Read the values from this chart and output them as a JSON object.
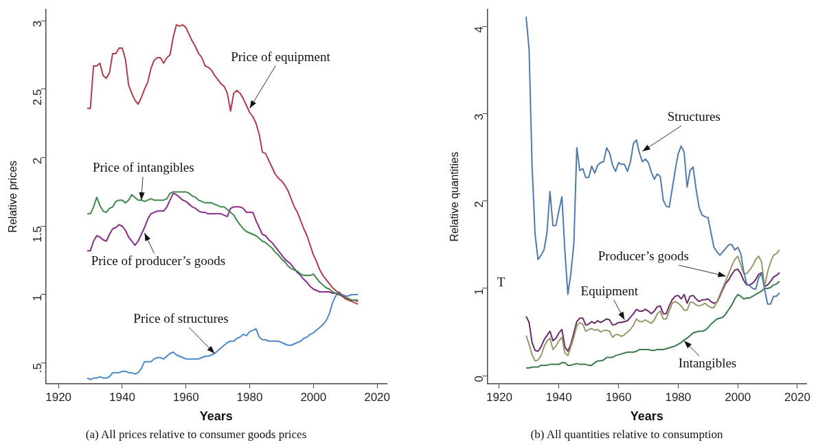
{
  "chart_data": [
    {
      "type": "line",
      "title": "(a) All prices relative to consumer goods prices",
      "xlabel": "Years",
      "ylabel": "Relative prices",
      "x": [
        1929,
        1930,
        1931,
        1932,
        1933,
        1934,
        1935,
        1936,
        1937,
        1938,
        1939,
        1940,
        1941,
        1942,
        1943,
        1944,
        1945,
        1946,
        1947,
        1948,
        1949,
        1950,
        1951,
        1952,
        1953,
        1954,
        1955,
        1956,
        1957,
        1958,
        1959,
        1960,
        1961,
        1962,
        1963,
        1964,
        1965,
        1966,
        1967,
        1968,
        1969,
        1970,
        1971,
        1972,
        1973,
        1974,
        1975,
        1976,
        1977,
        1978,
        1979,
        1980,
        1981,
        1982,
        1983,
        1984,
        1985,
        1986,
        1987,
        1988,
        1989,
        1990,
        1991,
        1992,
        1993,
        1994,
        1995,
        1996,
        1997,
        1998,
        1999,
        2000,
        2001,
        2002,
        2003,
        2004,
        2005,
        2006,
        2007,
        2008,
        2009,
        2010,
        2011,
        2012,
        2013,
        2014
      ],
      "series": [
        {
          "color": "#b03a48",
          "values": [
            2.36,
            2.36,
            2.67,
            2.67,
            2.69,
            2.6,
            2.58,
            2.62,
            2.76,
            2.76,
            2.8,
            2.8,
            2.72,
            2.53,
            2.47,
            2.42,
            2.39,
            2.44,
            2.5,
            2.55,
            2.65,
            2.71,
            2.73,
            2.73,
            2.69,
            2.73,
            2.75,
            2.88,
            2.97,
            2.96,
            2.97,
            2.95,
            2.9,
            2.85,
            2.81,
            2.76,
            2.73,
            2.67,
            2.66,
            2.64,
            2.6,
            2.57,
            2.54,
            2.52,
            2.47,
            2.34,
            2.47,
            2.49,
            2.47,
            2.43,
            2.38,
            2.33,
            2.3,
            2.25,
            2.17,
            2.04,
            2.03,
            1.98,
            1.93,
            1.88,
            1.85,
            1.83,
            1.8,
            1.76,
            1.7,
            1.64,
            1.6,
            1.54,
            1.48,
            1.43,
            1.36,
            1.29,
            1.24,
            1.18,
            1.14,
            1.11,
            1.08,
            1.05,
            1.03,
            1.01,
            0.99,
            0.97,
            0.96,
            0.95,
            0.94,
            0.93
          ]
        },
        {
          "color": "#3a8a4a",
          "values": [
            1.59,
            1.59,
            1.64,
            1.71,
            1.65,
            1.61,
            1.6,
            1.63,
            1.64,
            1.68,
            1.69,
            1.69,
            1.67,
            1.69,
            1.73,
            1.71,
            1.69,
            1.69,
            1.68,
            1.69,
            1.7,
            1.69,
            1.69,
            1.69,
            1.69,
            1.7,
            1.74,
            1.75,
            1.75,
            1.75,
            1.75,
            1.75,
            1.74,
            1.72,
            1.71,
            1.69,
            1.68,
            1.67,
            1.67,
            1.67,
            1.66,
            1.65,
            1.64,
            1.64,
            1.62,
            1.6,
            1.58,
            1.54,
            1.51,
            1.48,
            1.46,
            1.45,
            1.44,
            1.43,
            1.41,
            1.39,
            1.38,
            1.36,
            1.34,
            1.31,
            1.29,
            1.26,
            1.24,
            1.21,
            1.19,
            1.18,
            1.17,
            1.15,
            1.14,
            1.14,
            1.14,
            1.15,
            1.12,
            1.09,
            1.07,
            1.05,
            1.04,
            1.02,
            1.01,
            1.0,
            0.99,
            0.98,
            0.97,
            0.96,
            0.96,
            0.96
          ]
        },
        {
          "color": "#8a2a8a",
          "values": [
            1.32,
            1.32,
            1.39,
            1.43,
            1.42,
            1.4,
            1.39,
            1.44,
            1.48,
            1.49,
            1.51,
            1.5,
            1.47,
            1.42,
            1.39,
            1.36,
            1.39,
            1.44,
            1.49,
            1.55,
            1.59,
            1.6,
            1.61,
            1.61,
            1.61,
            1.64,
            1.69,
            1.74,
            1.73,
            1.71,
            1.69,
            1.68,
            1.66,
            1.64,
            1.63,
            1.61,
            1.6,
            1.6,
            1.59,
            1.59,
            1.59,
            1.59,
            1.59,
            1.58,
            1.57,
            1.63,
            1.64,
            1.64,
            1.64,
            1.63,
            1.6,
            1.6,
            1.6,
            1.54,
            1.49,
            1.44,
            1.43,
            1.4,
            1.38,
            1.35,
            1.32,
            1.29,
            1.26,
            1.24,
            1.22,
            1.19,
            1.16,
            1.14,
            1.11,
            1.09,
            1.06,
            1.04,
            1.03,
            1.02,
            1.02,
            1.02,
            1.02,
            1.01,
            1.01,
            1.0,
            0.99,
            0.98,
            0.97,
            0.96,
            0.96,
            0.95
          ]
        },
        {
          "color": "#4a88c8",
          "values": [
            0.39,
            0.38,
            0.39,
            0.39,
            0.4,
            0.39,
            0.39,
            0.4,
            0.43,
            0.43,
            0.43,
            0.44,
            0.44,
            0.43,
            0.43,
            0.42,
            0.43,
            0.46,
            0.51,
            0.51,
            0.51,
            0.53,
            0.54,
            0.54,
            0.53,
            0.55,
            0.57,
            0.58,
            0.56,
            0.55,
            0.54,
            0.53,
            0.53,
            0.53,
            0.53,
            0.53,
            0.54,
            0.55,
            0.55,
            0.56,
            0.57,
            0.59,
            0.61,
            0.63,
            0.65,
            0.66,
            0.66,
            0.68,
            0.69,
            0.71,
            0.7,
            0.73,
            0.74,
            0.75,
            0.69,
            0.67,
            0.67,
            0.66,
            0.66,
            0.66,
            0.66,
            0.65,
            0.64,
            0.63,
            0.63,
            0.64,
            0.65,
            0.66,
            0.68,
            0.69,
            0.71,
            0.72,
            0.74,
            0.76,
            0.78,
            0.81,
            0.86,
            0.94,
            0.99,
            1.02,
            1.0,
            0.99,
            0.99,
            1.0,
            1.0,
            1.0
          ]
        }
      ],
      "xlim": [
        1916,
        2023
      ],
      "xticks": [
        1920,
        1940,
        1960,
        1980,
        2000,
        2020
      ],
      "ylim": [
        0.35,
        3.08
      ],
      "yticks": [
        {
          "value": 0.5,
          "label": ".5"
        },
        1,
        1.5,
        2,
        2.5,
        3
      ],
      "annotations": [
        {
          "text": "Price of equipment",
          "x": 1980,
          "y": 2.36
        },
        {
          "text": "Price of intangibles",
          "x": 1946,
          "y": 1.69
        },
        {
          "text": "Price of producer’s goods",
          "x": 1947,
          "y": 1.45
        },
        {
          "text": "Price of structures",
          "x": 1969,
          "y": 0.57
        }
      ],
      "grid": false,
      "legend": false,
      "marker": "none",
      "line_style": "solid"
    },
    {
      "type": "line",
      "title": "(b) All quantities relative to consumption",
      "xlabel": "Years",
      "ylabel": "Relative quantities",
      "x": [
        1929,
        1930,
        1931,
        1932,
        1933,
        1934,
        1935,
        1936,
        1937,
        1938,
        1939,
        1940,
        1941,
        1942,
        1943,
        1944,
        1945,
        1946,
        1947,
        1948,
        1949,
        1950,
        1951,
        1952,
        1953,
        1954,
        1955,
        1956,
        1957,
        1958,
        1959,
        1960,
        1961,
        1962,
        1963,
        1964,
        1965,
        1966,
        1967,
        1968,
        1969,
        1970,
        1971,
        1972,
        1973,
        1974,
        1975,
        1976,
        1977,
        1978,
        1979,
        1980,
        1981,
        1982,
        1983,
        1984,
        1985,
        1986,
        1987,
        1988,
        1989,
        1990,
        1991,
        1992,
        1993,
        1994,
        1995,
        1996,
        1997,
        1998,
        1999,
        2000,
        2001,
        2002,
        2003,
        2004,
        2005,
        2006,
        2007,
        2008,
        2009,
        2010,
        2011,
        2012,
        2013,
        2014
      ],
      "series": [
        {
          "color": "#4f7aa8",
          "values": [
            4.11,
            3.73,
            2.4,
            1.62,
            1.33,
            1.38,
            1.44,
            1.64,
            2.11,
            1.72,
            1.72,
            1.89,
            2.05,
            1.43,
            0.93,
            1.17,
            1.51,
            2.61,
            2.35,
            2.37,
            2.27,
            2.27,
            2.4,
            2.32,
            2.41,
            2.44,
            2.45,
            2.61,
            2.55,
            2.41,
            2.34,
            2.44,
            2.42,
            2.42,
            2.34,
            2.45,
            2.66,
            2.7,
            2.55,
            2.45,
            2.48,
            2.44,
            2.33,
            2.25,
            2.31,
            2.28,
            2.01,
            1.94,
            1.93,
            2.14,
            2.35,
            2.54,
            2.63,
            2.56,
            2.16,
            2.35,
            2.39,
            2.14,
            1.93,
            1.84,
            1.82,
            1.81,
            1.64,
            1.47,
            1.42,
            1.38,
            1.42,
            1.46,
            1.5,
            1.5,
            1.44,
            1.47,
            1.4,
            1.19,
            1.05,
            1.03,
            1.0,
            0.99,
            1.12,
            1.17,
            0.99,
            0.82,
            0.82,
            0.91,
            0.91,
            0.95
          ]
        },
        {
          "color": "#9a9868",
          "values": [
            0.46,
            0.36,
            0.24,
            0.17,
            0.18,
            0.23,
            0.33,
            0.4,
            0.43,
            0.3,
            0.34,
            0.4,
            0.44,
            0.26,
            0.23,
            0.33,
            0.44,
            0.57,
            0.61,
            0.59,
            0.51,
            0.53,
            0.54,
            0.52,
            0.53,
            0.5,
            0.52,
            0.52,
            0.51,
            0.44,
            0.47,
            0.47,
            0.45,
            0.47,
            0.5,
            0.53,
            0.58,
            0.65,
            0.62,
            0.62,
            0.64,
            0.62,
            0.6,
            0.64,
            0.71,
            0.74,
            0.65,
            0.65,
            0.74,
            0.83,
            0.85,
            0.83,
            0.8,
            0.75,
            0.75,
            0.84,
            0.84,
            0.81,
            0.8,
            0.81,
            0.83,
            0.8,
            0.78,
            0.78,
            0.85,
            0.93,
            1.01,
            1.09,
            1.17,
            1.26,
            1.33,
            1.37,
            1.27,
            1.17,
            1.17,
            1.21,
            1.26,
            1.33,
            1.37,
            1.3,
            1.02,
            1.19,
            1.3,
            1.38,
            1.4,
            1.44
          ]
        },
        {
          "color": "#6a2a6a",
          "values": [
            0.68,
            0.61,
            0.38,
            0.29,
            0.28,
            0.33,
            0.41,
            0.46,
            0.51,
            0.4,
            0.43,
            0.49,
            0.53,
            0.33,
            0.28,
            0.36,
            0.49,
            0.62,
            0.66,
            0.66,
            0.58,
            0.59,
            0.62,
            0.6,
            0.63,
            0.61,
            0.63,
            0.65,
            0.64,
            0.58,
            0.59,
            0.61,
            0.61,
            0.62,
            0.63,
            0.67,
            0.71,
            0.76,
            0.74,
            0.74,
            0.76,
            0.74,
            0.71,
            0.74,
            0.79,
            0.8,
            0.71,
            0.71,
            0.8,
            0.87,
            0.91,
            0.92,
            0.88,
            0.93,
            0.83,
            0.91,
            0.92,
            0.88,
            0.85,
            0.87,
            0.87,
            0.88,
            0.85,
            0.83,
            0.84,
            0.91,
            0.99,
            1.06,
            1.1,
            1.16,
            1.21,
            1.22,
            1.17,
            1.09,
            1.04,
            1.04,
            1.06,
            1.1,
            1.16,
            1.18,
            1.02,
            1.04,
            1.08,
            1.13,
            1.15,
            1.18
          ]
        },
        {
          "color": "#3a7a4a",
          "values": [
            0.09,
            0.09,
            0.1,
            0.1,
            0.1,
            0.12,
            0.12,
            0.12,
            0.13,
            0.13,
            0.13,
            0.13,
            0.15,
            0.15,
            0.12,
            0.12,
            0.13,
            0.14,
            0.13,
            0.13,
            0.13,
            0.12,
            0.12,
            0.15,
            0.17,
            0.17,
            0.18,
            0.21,
            0.21,
            0.21,
            0.23,
            0.24,
            0.25,
            0.26,
            0.27,
            0.27,
            0.27,
            0.28,
            0.3,
            0.3,
            0.3,
            0.3,
            0.29,
            0.29,
            0.3,
            0.3,
            0.3,
            0.31,
            0.32,
            0.33,
            0.34,
            0.36,
            0.38,
            0.41,
            0.43,
            0.46,
            0.49,
            0.5,
            0.51,
            0.51,
            0.52,
            0.55,
            0.59,
            0.62,
            0.65,
            0.66,
            0.67,
            0.71,
            0.76,
            0.81,
            0.88,
            0.93,
            0.91,
            0.88,
            0.89,
            0.89,
            0.91,
            0.93,
            0.95,
            0.97,
            1.0,
            1.0,
            1.01,
            1.04,
            1.05,
            1.08
          ]
        }
      ],
      "xlim": [
        1916,
        2023
      ],
      "xticks": [
        1920,
        1940,
        1960,
        1980,
        2000,
        2020
      ],
      "ylim": [
        -0.09,
        4.19
      ],
      "yticks": [
        0,
        1,
        2,
        3,
        4
      ],
      "annotations": [
        {
          "text": "Structures",
          "x": 1968,
          "y": 2.57
        },
        {
          "text": "Producer’s goods",
          "x": 1996,
          "y": 1.14
        },
        {
          "text": "Equipment",
          "x": 1962,
          "y": 0.64
        },
        {
          "text": "Intangibles",
          "x": 1982,
          "y": 0.4
        },
        "T"
      ],
      "grid": false,
      "legend": false,
      "marker": "none",
      "line_style": "solid"
    }
  ]
}
